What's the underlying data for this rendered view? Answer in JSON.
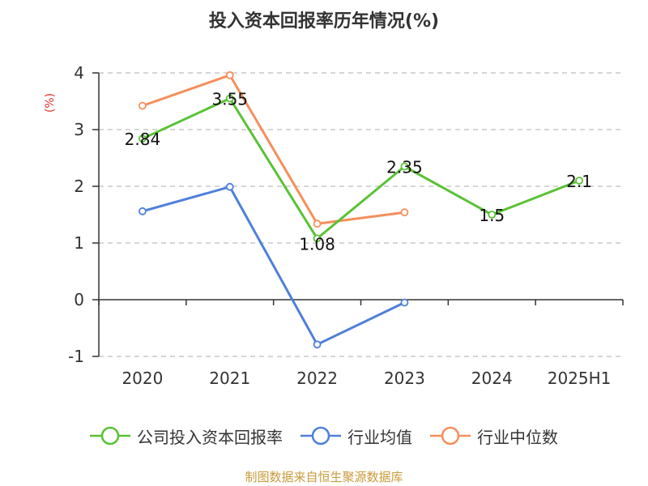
{
  "chart_data": {
    "type": "line",
    "title": "投入资本回报率历年情况(%)",
    "ylabel": "(%)",
    "categories": [
      "2020",
      "2021",
      "2022",
      "2023",
      "2024",
      "2025H1"
    ],
    "ylim": [
      -1,
      4
    ],
    "yticks": [
      "4",
      "3",
      "2",
      "1",
      "0",
      "-1"
    ],
    "grid": true,
    "legend_position": "bottom",
    "series": [
      {
        "name": "公司投入资本回报率",
        "color": "#5ac235",
        "values": [
          2.84,
          3.55,
          1.08,
          2.35,
          1.5,
          2.1
        ],
        "labels": [
          "2.84",
          "3.55",
          "1.08",
          "2.35",
          "1.5",
          "2.1"
        ]
      },
      {
        "name": "行业均值",
        "color": "#4f7fd9",
        "values": [
          1.56,
          1.99,
          -0.79,
          -0.05,
          null,
          null
        ]
      },
      {
        "name": "行业中位数",
        "color": "#f58f5b",
        "values": [
          3.42,
          3.96,
          1.34,
          1.54,
          null,
          null
        ]
      }
    ]
  },
  "source_text": "制图数据来自恒生聚源数据库"
}
